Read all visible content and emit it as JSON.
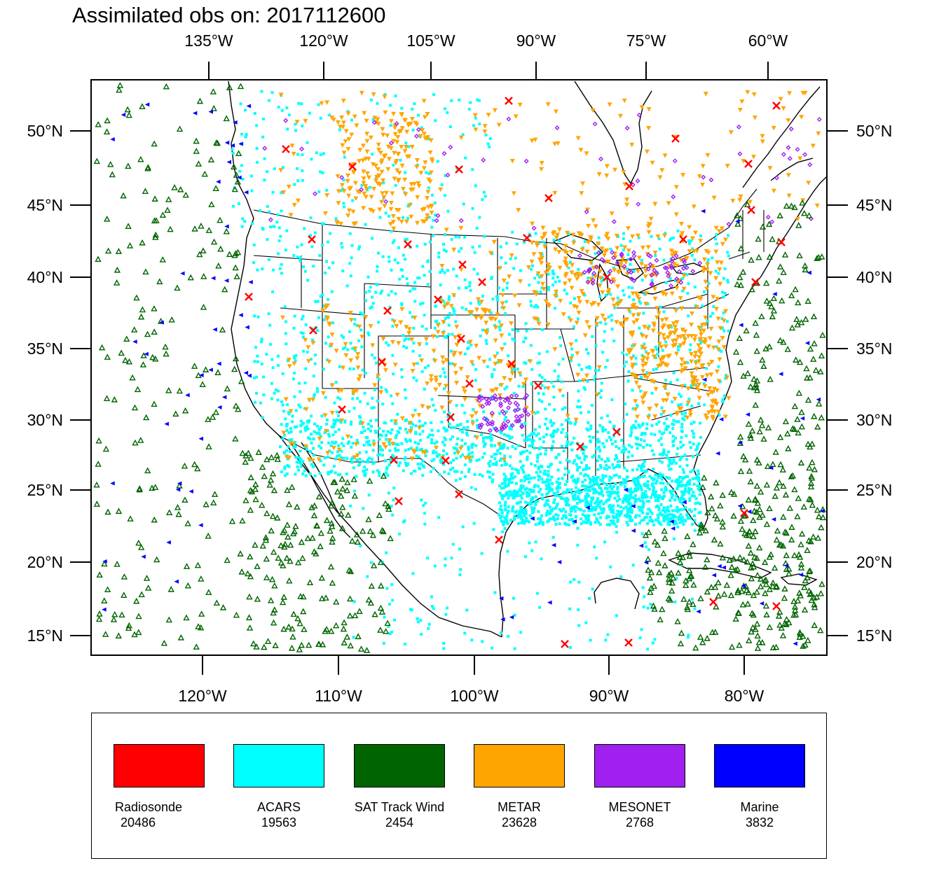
{
  "title": "Assimilated obs on: 2017112600",
  "axes": {
    "top_lon_labels": [
      "135°W",
      "120°W",
      "105°W",
      "90°W",
      "75°W",
      "60°W"
    ],
    "bottom_lon_labels": [
      "120°W",
      "110°W",
      "100°W",
      "90°W",
      "80°W"
    ],
    "lat_labels": [
      "50°N",
      "45°N",
      "40°N",
      "35°N",
      "30°N",
      "25°N",
      "20°N",
      "15°N"
    ]
  },
  "legend": [
    {
      "name": "Radiosonde",
      "count": "20486",
      "color": "#ff0000",
      "marker": "x-mark"
    },
    {
      "name": "ACARS",
      "count": "19563",
      "color": "#00ffff",
      "marker": "square-dot"
    },
    {
      "name": "SAT Track Wind",
      "count": "2454",
      "color": "#006400",
      "marker": "triangle-up"
    },
    {
      "name": "METAR",
      "count": "23628",
      "color": "#ffa500",
      "marker": "triangle-down"
    },
    {
      "name": "MESONET",
      "count": "2768",
      "color": "#a020f0",
      "marker": "diamond"
    },
    {
      "name": "Marine",
      "count": "3832",
      "color": "#0000ff",
      "marker": "triangle-left"
    }
  ]
}
